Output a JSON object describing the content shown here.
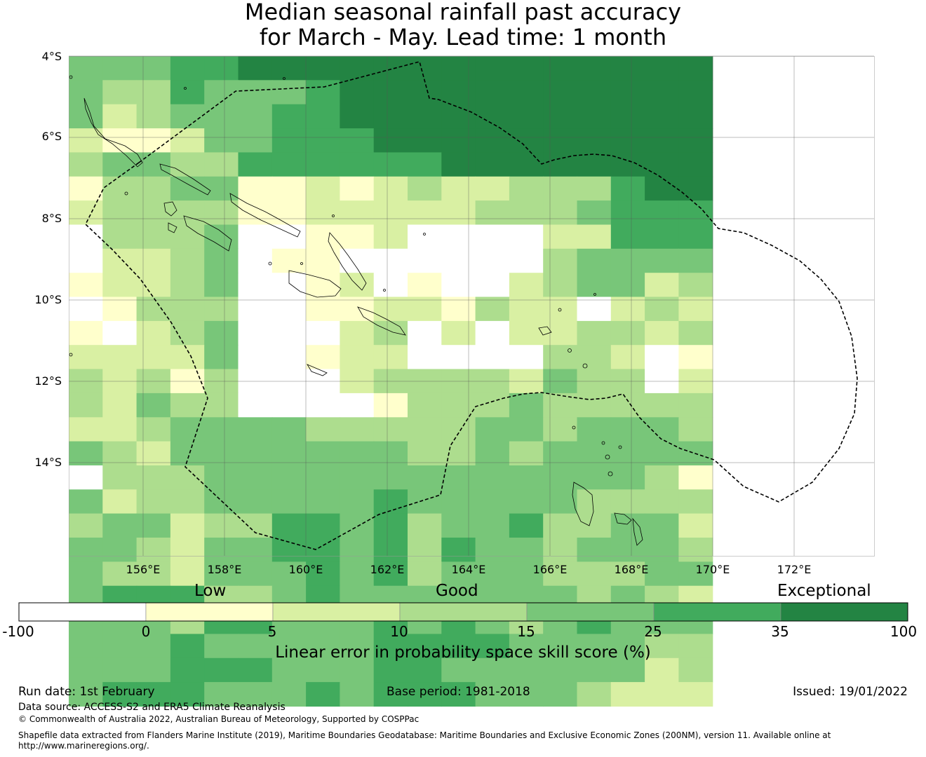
{
  "title": {
    "line1": "Median seasonal rainfall past accuracy",
    "line2": "for March - May. Lead time: 1 month"
  },
  "map": {
    "lat_labels": [
      "4°S",
      "6°S",
      "8°S",
      "10°S",
      "12°S",
      "14°S"
    ],
    "lon_labels": [
      "156°E",
      "158°E",
      "160°E",
      "162°E",
      "164°E",
      "166°E",
      "168°E",
      "170°E",
      "172°E"
    ],
    "grid_rows": [
      "4445566666666666666",
      "4335444566666666666",
      "4234445566666666666",
      "2112445556666666666",
      "3443355555566666666",
      "1334411212322333566",
      "2333311222223334555",
      "0333400112000022555",
      "0223401100000034444",
      "1223400120100234423",
      "0133300112213220232",
      "1023400023020223323",
      "2222400122000033201",
      "3231300023333243302",
      "3243300001333433333",
      "2234444333334434443",
      "4324444444334344444",
      "0333444444444444431",
      "4233444445444443333",
      "3442335545344533442",
      "4432445545354434443",
      "4332444545344433344",
      "4555334544444443432",
      "4443554445454345444",
      "4445444445555444433",
      "4445554445544444423",
      "4555444545554443222"
    ]
  },
  "legend": {
    "category_labels": {
      "low": "Low",
      "good": "Good",
      "exceptional": "Exceptional"
    },
    "ticks": [
      "-100",
      "0",
      "5",
      "10",
      "15",
      "25",
      "35",
      "100"
    ],
    "colors": [
      "#ffffff",
      "#ffffcc",
      "#d9f0a3",
      "#addd8e",
      "#78c679",
      "#41ab5d",
      "#238443"
    ],
    "label": "Linear error in probability space skill score (%)"
  },
  "footer": {
    "run_date": "Run date: 1st February",
    "base_period": "Base period: 1981-2018",
    "issued": "Issued: 19/01/2022",
    "data_source": "Data source: ACCESS-S2 and ERA5 Climate Reanalysis",
    "copyright": "© Commonwealth of Australia 2022, Australian Bureau of Meteorology, Supported by COSPPac",
    "shapefile_line1": "Shapefile data extracted from Flanders Marine Institute (2019), Maritime Boundaries Geodatabase: Maritime Boundaries and Exclusive Economic Zones (200NM), version 11. Available online at",
    "shapefile_line2": "http://www.marineregions.org/."
  }
}
